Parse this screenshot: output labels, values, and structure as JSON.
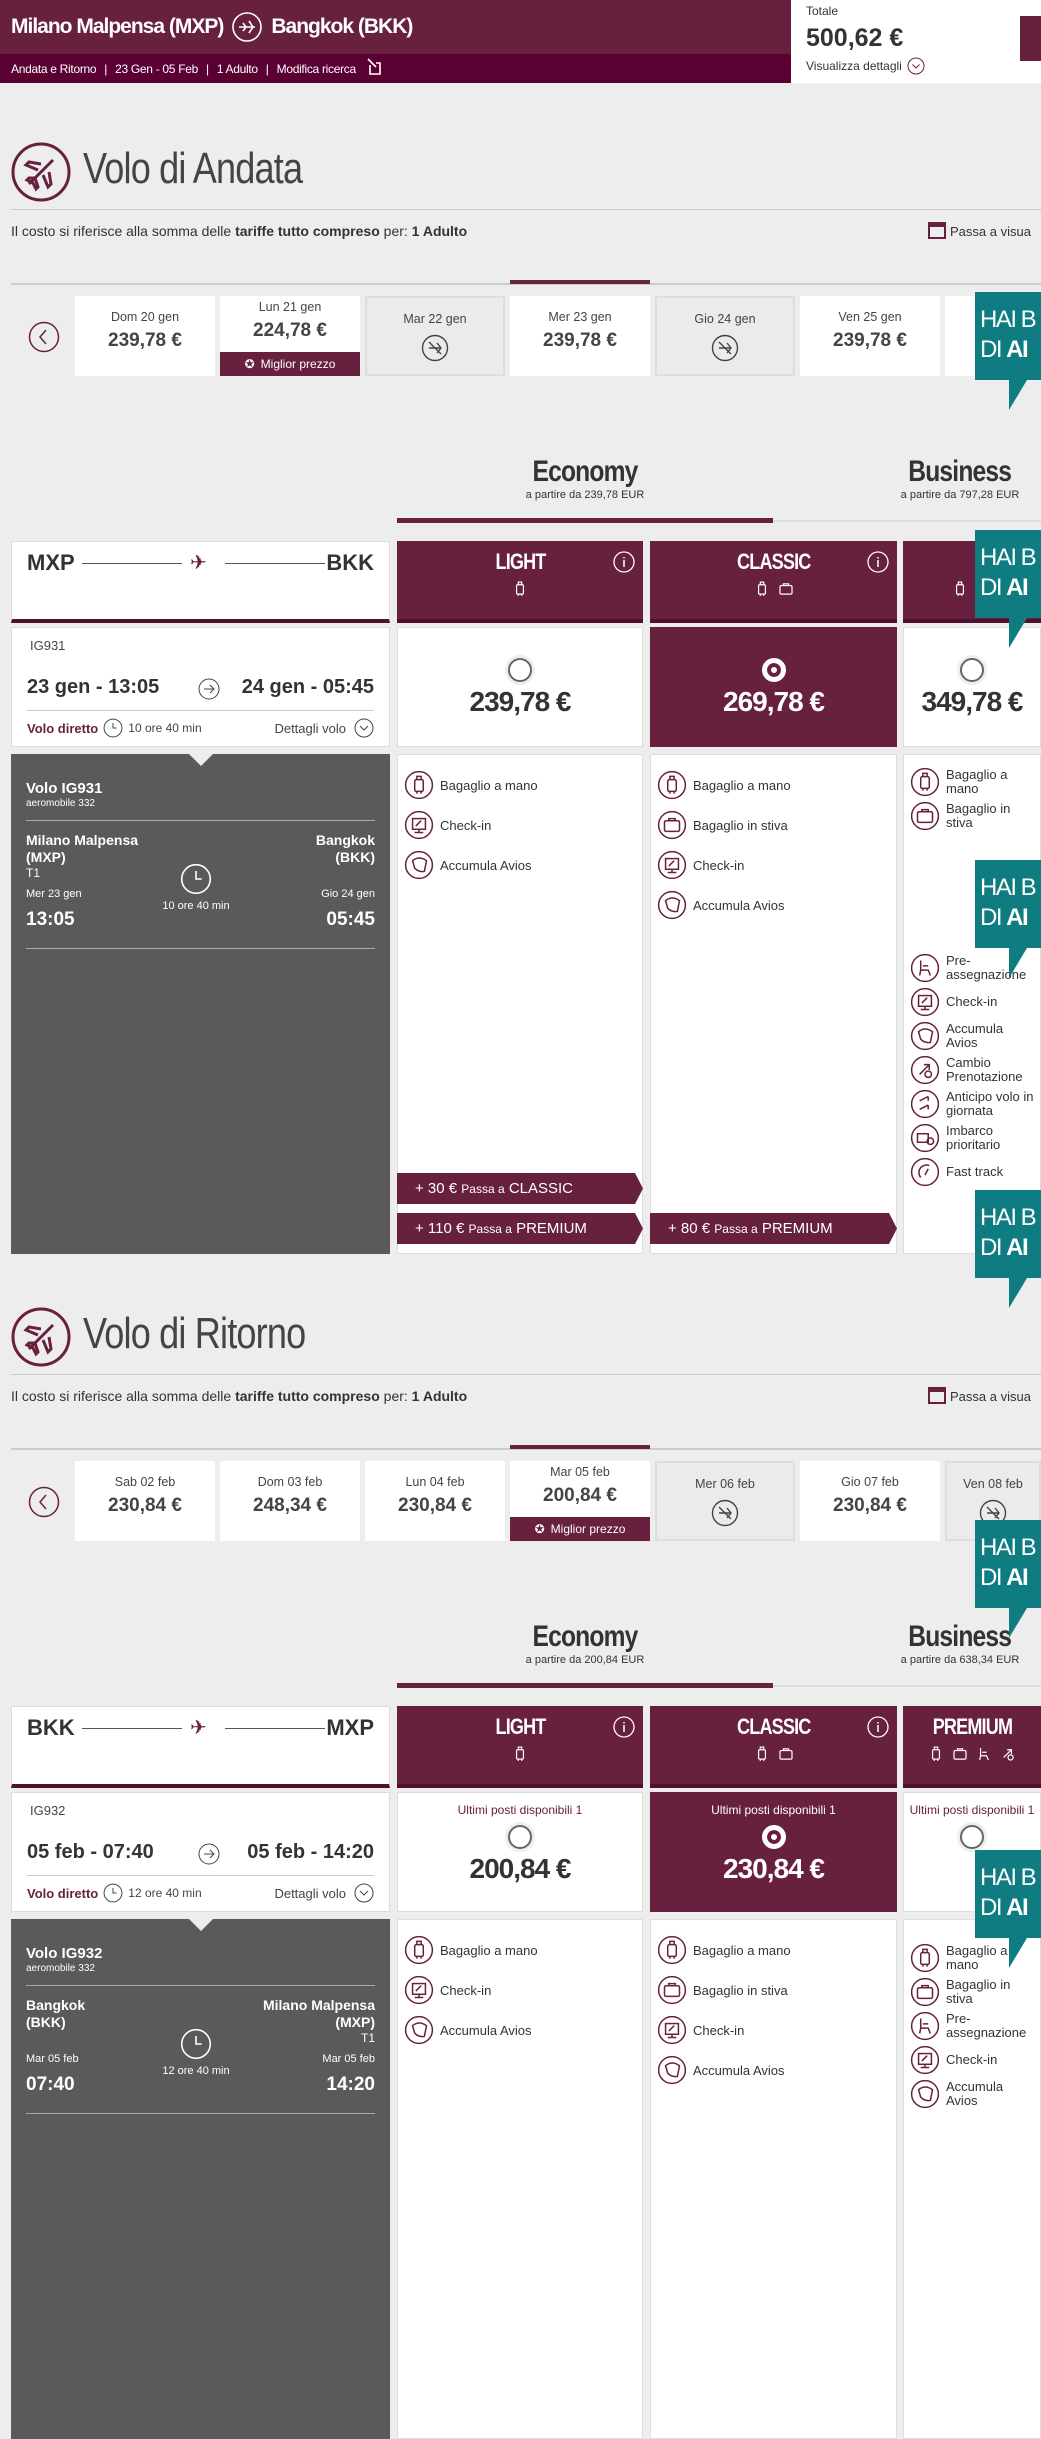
{
  "header": {
    "route_from": "Milano Malpensa (MXP)",
    "route_to": "Bangkok (BKK)",
    "trip_type": "Andata e Ritorno",
    "dates": "23 Gen - 05 Feb",
    "passengers": "1 Adulto",
    "modify": "Modifica ricerca",
    "total_label": "Totale",
    "total": "500,62 €",
    "details": "Visualizza dettagli"
  },
  "banner": {
    "line1": "HAI B",
    "line2_prefix": "DI ",
    "line2_bold": "AI"
  },
  "colors": {
    "brand": "#68203f",
    "dark_panel": "#5a5a5a",
    "banner": "#0f7c82",
    "background": "#ededed"
  },
  "sections": [
    {
      "title": "Volo di Andata",
      "info": {
        "pre": "Il costo si riferisce alla somma delle ",
        "bold1": "tariffe tutto compreso",
        "mid": " per: ",
        "bold2": "1 Adulto"
      },
      "calendar_link": "Passa a visua",
      "best_label": "Miglior prezzo",
      "dates": [
        {
          "day": "Dom 20 gen",
          "price": "239,78 €"
        },
        {
          "day": "Lun 21 gen",
          "price": "224,78 €",
          "best": true
        },
        {
          "day": "Mar 22 gen",
          "unavailable": true
        },
        {
          "day": "Mer 23 gen",
          "price": "239,78 €",
          "selected": true
        },
        {
          "day": "Gio 24 gen",
          "unavailable": true
        },
        {
          "day": "Ven 25 gen",
          "price": "239,78 €"
        },
        {
          "day": ""
        }
      ],
      "cabins": [
        {
          "name": "Economy",
          "from": "a partire da 239,78 EUR",
          "active": true
        },
        {
          "name": "Business",
          "from": "a partire da 797,28 EUR"
        }
      ],
      "route": {
        "from": "MXP",
        "to": "BKK"
      },
      "flight": {
        "number": "IG931",
        "dep": "23 gen - 13:05",
        "arr": "24 gen - 05:45",
        "direct": "Volo diretto",
        "duration": "10 ore 40 min",
        "details": "Dettagli volo"
      },
      "fares": [
        {
          "name": "LIGHT",
          "icons": [
            "hand-bag"
          ],
          "price": "239,78 €",
          "features": [
            "Bagaglio a mano",
            "Check-in",
            "Accumula Avios"
          ]
        },
        {
          "name": "CLASSIC",
          "icons": [
            "hand-bag",
            "hold-bag"
          ],
          "price": "269,78 €",
          "selected": true,
          "features": [
            "Bagaglio a mano",
            "Bagaglio in stiva",
            "Check-in",
            "Accumula Avios"
          ]
        },
        {
          "name": "",
          "icons": [
            "hand-bag",
            "hold-bag"
          ],
          "price": "349,78 €",
          "features": [
            "Bagaglio a mano",
            "Bagaglio in stiva",
            "Pre-assegnazione",
            "Check-in",
            "Accumula Avios",
            "Cambio Prenotazione",
            "Anticipo volo in giornata",
            "Imbarco prioritario",
            "Fast track"
          ]
        }
      ],
      "upsells": [
        {
          "amount": "+ 30 €",
          "label": "Passa a",
          "target": "CLASSIC"
        },
        {
          "amount": "+ 110 €",
          "label": "Passa a",
          "target": "PREMIUM"
        },
        {
          "amount": "+ 80 €",
          "label": "Passa a",
          "target": "PREMIUM"
        }
      ],
      "detail": {
        "title": "Volo IG931",
        "aircraft": "aeromobile 332",
        "from_city": "Milano Malpensa",
        "from_code": "(MXP)",
        "from_terminal": "T1",
        "from_date": "Mer 23 gen",
        "from_time": "13:05",
        "to_city": "Bangkok",
        "to_code": "(BKK)",
        "to_terminal": "",
        "to_date": "Gio 24 gen",
        "to_time": "05:45",
        "duration": "10 ore 40 min"
      }
    },
    {
      "title": "Volo di Ritorno",
      "info": {
        "pre": "Il costo si riferisce alla somma delle ",
        "bold1": "tariffe tutto compreso",
        "mid": " per: ",
        "bold2": "1 Adulto"
      },
      "calendar_link": "Passa a visua",
      "best_label": "Miglior prezzo",
      "dates": [
        {
          "day": "Sab 02 feb",
          "price": "230,84 €"
        },
        {
          "day": "Dom 03 feb",
          "price": "248,34 €"
        },
        {
          "day": "Lun 04 feb",
          "price": "230,84 €"
        },
        {
          "day": "Mar 05 feb",
          "price": "200,84 €",
          "best": true,
          "selected": true
        },
        {
          "day": "Mer 06 feb",
          "unavailable": true
        },
        {
          "day": "Gio 07 feb",
          "price": "230,84 €"
        },
        {
          "day": "Ven 08 feb",
          "unavailable": true
        }
      ],
      "cabins": [
        {
          "name": "Economy",
          "from": "a partire da 200,84 EUR",
          "active": true
        },
        {
          "name": "Business",
          "from": "a partire da 638,34 EUR"
        }
      ],
      "route": {
        "from": "BKK",
        "to": "MXP"
      },
      "flight": {
        "number": "IG932",
        "dep": "05 feb - 07:40",
        "arr": "05 feb - 14:20",
        "direct": "Volo diretto",
        "duration": "12 ore 40 min",
        "details": "Dettagli volo"
      },
      "fares": [
        {
          "name": "LIGHT",
          "icons": [
            "hand-bag"
          ],
          "price": "200,84 €",
          "availability": "Ultimi posti disponibili 1",
          "features": [
            "Bagaglio a mano",
            "Check-in",
            "Accumula Avios"
          ]
        },
        {
          "name": "CLASSIC",
          "icons": [
            "hand-bag",
            "hold-bag"
          ],
          "price": "230,84 €",
          "availability": "Ultimi posti disponibili 1",
          "selected": true,
          "features": [
            "Bagaglio a mano",
            "Bagaglio in stiva",
            "Check-in",
            "Accumula Avios"
          ]
        },
        {
          "name": "PREMIUM",
          "icons": [
            "hand-bag",
            "hold-bag",
            "seat",
            "change"
          ],
          "price": "",
          "availability": "Ultimi posti disponibili 1",
          "features": [
            "Bagaglio a mano",
            "Bagaglio in stiva",
            "Pre-assegnazione",
            "Check-in",
            "Accumula Avios"
          ]
        }
      ],
      "upsells": [],
      "detail": {
        "title": "Volo IG932",
        "aircraft": "aeromobile 332",
        "from_city": "Bangkok",
        "from_code": "(BKK)",
        "from_terminal": "",
        "from_date": "Mar 05 feb",
        "from_time": "07:40",
        "to_city": "Milano Malpensa",
        "to_code": "(MXP)",
        "to_terminal": "T1",
        "to_date": "Mar 05 feb",
        "to_time": "14:20",
        "duration": "12 ore 40 min"
      }
    }
  ]
}
